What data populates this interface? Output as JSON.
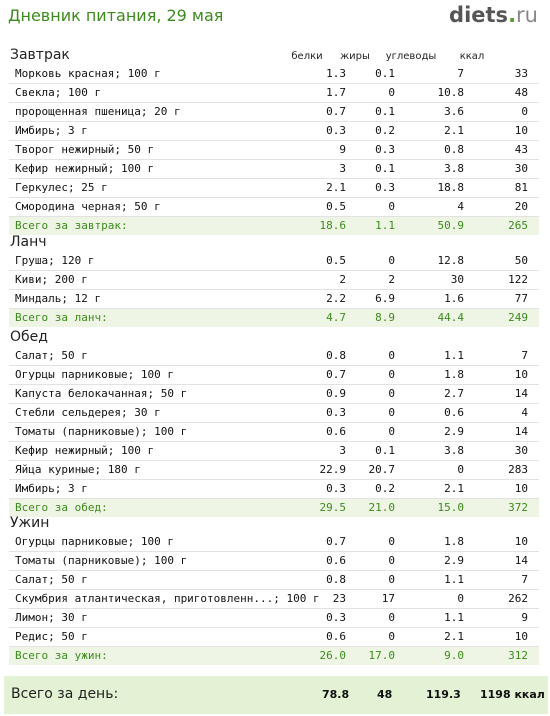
{
  "header": {
    "title": "Дневник питания, 29 мая",
    "logo_main": "diets",
    "logo_dot": ".",
    "logo_tld": "ru"
  },
  "columns": {
    "protein": "белки",
    "fat": "жиры",
    "carbs": "углеводы",
    "kcal": "ккал"
  },
  "meals": [
    {
      "name": "Завтрак",
      "items": [
        {
          "name": "Морковь красная; 100 г",
          "p": "1.3",
          "f": "0.1",
          "c": "7",
          "k": "33"
        },
        {
          "name": "Свекла; 100 г",
          "p": "1.7",
          "f": "0",
          "c": "10.8",
          "k": "48"
        },
        {
          "name": "пророщенная пшеница; 20 г",
          "p": "0.7",
          "f": "0.1",
          "c": "3.6",
          "k": "0"
        },
        {
          "name": "Имбирь; 3 г",
          "p": "0.3",
          "f": "0.2",
          "c": "2.1",
          "k": "10"
        },
        {
          "name": "Творог нежирный; 50 г",
          "p": "9",
          "f": "0.3",
          "c": "0.8",
          "k": "43"
        },
        {
          "name": "Кефир нежирный; 100 г",
          "p": "3",
          "f": "0.1",
          "c": "3.8",
          "k": "30"
        },
        {
          "name": "Геркулес; 25 г",
          "p": "2.1",
          "f": "0.3",
          "c": "18.8",
          "k": "81"
        },
        {
          "name": "Смородина черная; 50 г",
          "p": "0.5",
          "f": "0",
          "c": "4",
          "k": "20"
        }
      ],
      "total": {
        "name": "Всего за завтрак:",
        "p": "18.6",
        "f": "1.1",
        "c": "50.9",
        "k": "265"
      }
    },
    {
      "name": "Ланч",
      "items": [
        {
          "name": "Груша; 120 г",
          "p": "0.5",
          "f": "0",
          "c": "12.8",
          "k": "50"
        },
        {
          "name": "Киви; 200 г",
          "p": "2",
          "f": "2",
          "c": "30",
          "k": "122"
        },
        {
          "name": "Миндаль; 12 г",
          "p": "2.2",
          "f": "6.9",
          "c": "1.6",
          "k": "77"
        }
      ],
      "total": {
        "name": "Всего за ланч:",
        "p": "4.7",
        "f": "8.9",
        "c": "44.4",
        "k": "249"
      }
    },
    {
      "name": "Обед",
      "items": [
        {
          "name": "Салат; 50 г",
          "p": "0.8",
          "f": "0",
          "c": "1.1",
          "k": "7"
        },
        {
          "name": "Огурцы парниковые; 100 г",
          "p": "0.7",
          "f": "0",
          "c": "1.8",
          "k": "10"
        },
        {
          "name": "Капуста белокачанная; 50 г",
          "p": "0.9",
          "f": "0",
          "c": "2.7",
          "k": "14"
        },
        {
          "name": "Стебли сельдерея; 30 г",
          "p": "0.3",
          "f": "0",
          "c": "0.6",
          "k": "4"
        },
        {
          "name": "Томаты (парниковые); 100 г",
          "p": "0.6",
          "f": "0",
          "c": "2.9",
          "k": "14"
        },
        {
          "name": "Кефир нежирный; 100 г",
          "p": "3",
          "f": "0.1",
          "c": "3.8",
          "k": "30"
        },
        {
          "name": "Яйца куриные; 180 г",
          "p": "22.9",
          "f": "20.7",
          "c": "0",
          "k": "283"
        },
        {
          "name": "Имбирь; 3 г",
          "p": "0.3",
          "f": "0.2",
          "c": "2.1",
          "k": "10"
        }
      ],
      "total": {
        "name": "Всего за обед:",
        "p": "29.5",
        "f": "21.0",
        "c": "15.0",
        "k": "372"
      }
    },
    {
      "name": "Ужин",
      "items": [
        {
          "name": "Огурцы парниковые; 100 г",
          "p": "0.7",
          "f": "0",
          "c": "1.8",
          "k": "10"
        },
        {
          "name": "Томаты (парниковые); 100 г",
          "p": "0.6",
          "f": "0",
          "c": "2.9",
          "k": "14"
        },
        {
          "name": "Салат; 50 г",
          "p": "0.8",
          "f": "0",
          "c": "1.1",
          "k": "7"
        },
        {
          "name": "Скумбрия атлантическая, приготовленн...; 100 г",
          "p": "23",
          "f": "17",
          "c": "0",
          "k": "262"
        },
        {
          "name": "Лимон; 30 г",
          "p": "0.3",
          "f": "0",
          "c": "1.1",
          "k": "9"
        },
        {
          "name": "Редис; 50 г",
          "p": "0.6",
          "f": "0",
          "c": "2.1",
          "k": "10"
        }
      ],
      "total": {
        "name": "Всего за ужин:",
        "p": "26.0",
        "f": "17.0",
        "c": "9.0",
        "k": "312"
      }
    }
  ],
  "day_total": {
    "label": "Всего за день:",
    "p": "78.8",
    "f": "48",
    "c": "119.3",
    "k": "1198 ккал"
  }
}
